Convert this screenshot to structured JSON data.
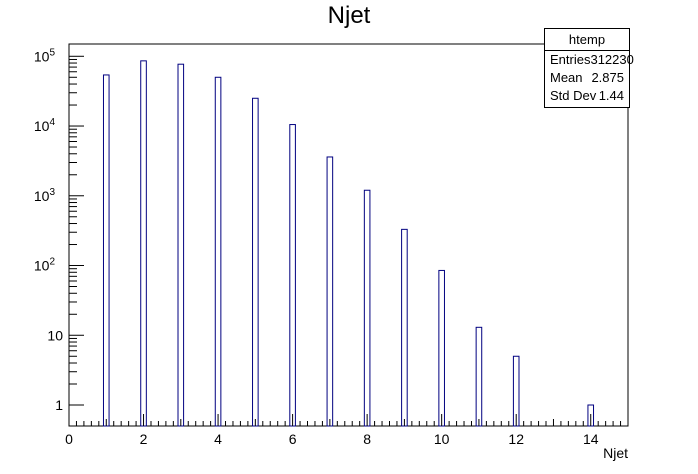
{
  "title": "Njet",
  "stats": {
    "name": "htemp",
    "rows": [
      {
        "label": "Entries",
        "value": "312230"
      },
      {
        "label": "Mean",
        "value": "2.875"
      },
      {
        "label": "Std Dev",
        "value": "1.44"
      }
    ]
  },
  "chart_data": {
    "type": "bar",
    "title": "Njet",
    "xlabel": "Njet",
    "ylabel": "",
    "xlim": [
      0,
      15
    ],
    "ylim": [
      0.5,
      150000
    ],
    "log_y": true,
    "grid": false,
    "legend": "stats box top-right",
    "x": [
      1,
      2,
      3,
      4,
      5,
      6,
      7,
      8,
      9,
      10,
      11,
      12,
      14
    ],
    "values": [
      54000,
      86000,
      77000,
      50000,
      25000,
      10500,
      3600,
      1200,
      330,
      85,
      13,
      5,
      1
    ],
    "x_ticks": [
      "0",
      "2",
      "4",
      "6",
      "8",
      "10",
      "12",
      "14"
    ],
    "y_ticks": [
      {
        "value": 100000,
        "base": "10",
        "exp": "5"
      },
      {
        "value": 10000,
        "base": "10",
        "exp": "4"
      },
      {
        "value": 1000,
        "base": "10",
        "exp": "3"
      },
      {
        "value": 100,
        "base": "10",
        "exp": "2"
      },
      {
        "value": 10,
        "base": "10",
        "exp": ""
      },
      {
        "value": 1,
        "base": "1",
        "exp": ""
      }
    ],
    "colors": {
      "bar_stroke": "#000080",
      "bar_fill": "#ffffff",
      "axis": "#000000"
    }
  }
}
